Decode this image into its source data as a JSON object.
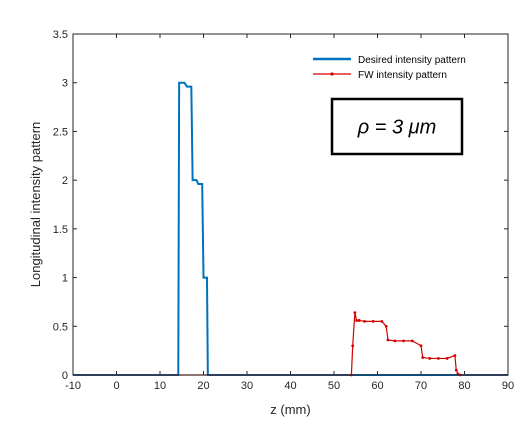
{
  "chart_data": {
    "type": "line",
    "title": "",
    "xlabel": "z (mm)",
    "ylabel": "Longitudinal intensity pattern",
    "xlim": [
      -10,
      90
    ],
    "ylim": [
      0,
      3.5
    ],
    "xticks": [
      -10,
      0,
      10,
      20,
      30,
      40,
      50,
      60,
      70,
      80,
      90
    ],
    "yticks": [
      0,
      0.5,
      1,
      1.5,
      2,
      2.5,
      3,
      3.5
    ],
    "grid": false,
    "legend_position": "top-right",
    "annotation": "ρ = 3 μm",
    "series": [
      {
        "name": "Desired intensity pattern",
        "color": "#0072BD",
        "marker": "none",
        "x": [
          -10,
          14.2,
          14.4,
          15.6,
          16.2,
          17.2,
          17.5,
          18.4,
          18.8,
          19.7,
          20.0,
          20.8,
          21.0,
          90
        ],
        "y": [
          0,
          0,
          3.0,
          3.0,
          2.96,
          2.96,
          2.0,
          2.0,
          1.96,
          1.96,
          1.0,
          1.0,
          0,
          0
        ]
      },
      {
        "name": "FW intensity pattern",
        "color": "#D40000",
        "marker": "dot",
        "x": [
          -10,
          54.0,
          54.3,
          54.8,
          55.2,
          55.8,
          57,
          59,
          61,
          62.0,
          62.4,
          64,
          66,
          68,
          70.0,
          70.4,
          72,
          74,
          76,
          77.8,
          78.1,
          78.5,
          79,
          90
        ],
        "y": [
          0,
          0,
          0.3,
          0.64,
          0.56,
          0.56,
          0.55,
          0.55,
          0.55,
          0.5,
          0.36,
          0.35,
          0.35,
          0.35,
          0.3,
          0.18,
          0.17,
          0.17,
          0.17,
          0.2,
          0.05,
          0.01,
          0,
          0
        ]
      }
    ]
  }
}
